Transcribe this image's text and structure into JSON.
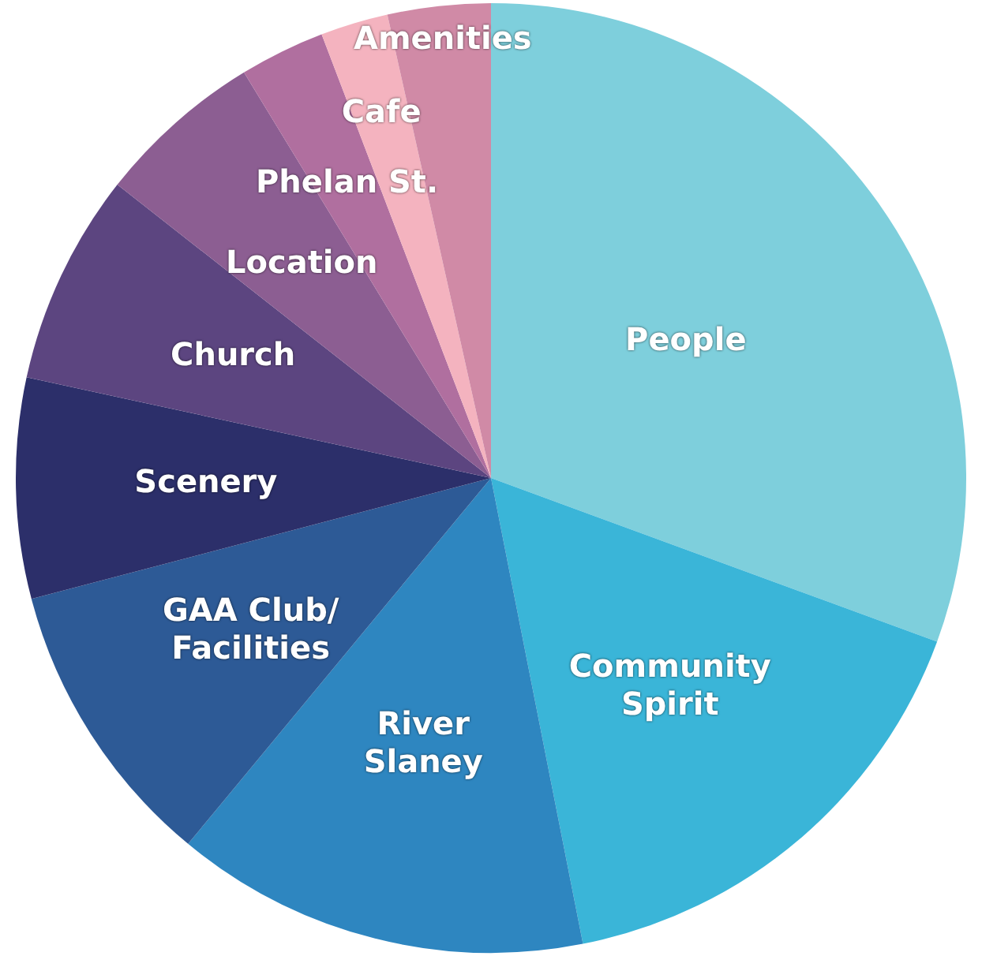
{
  "chart_data": {
    "type": "pie",
    "categories": [
      "People",
      "Community Spirit",
      "River Slaney",
      "GAA Club/ Facilities",
      "Scenery",
      "Church",
      "Location",
      "Phelan St.",
      "Cafe",
      "Amenities"
    ],
    "values": [
      30.6,
      16.3,
      14.1,
      9.9,
      7.5,
      7.2,
      5.7,
      2.9,
      2.3,
      3.5
    ],
    "colors": [
      "#7ecfdc",
      "#3ab5d8",
      "#2e86c0",
      "#2d5a96",
      "#2c2f6a",
      "#5c4580",
      "#8c5e92",
      "#b06f9f",
      "#f4b3bf",
      "#d08aa6"
    ],
    "legend": false
  }
}
